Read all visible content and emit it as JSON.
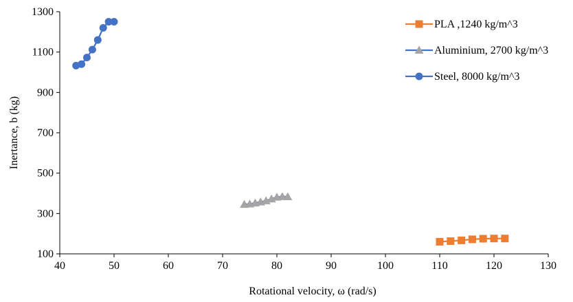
{
  "chart_data": {
    "type": "scatter",
    "title": "",
    "xlabel": "Rotational velocity, ω (rad/s)",
    "ylabel": "Inertance,  b (kg)",
    "xlim": [
      40,
      130
    ],
    "ylim": [
      100,
      1300
    ],
    "xticks": [
      40,
      50,
      60,
      70,
      80,
      90,
      100,
      110,
      120,
      130
    ],
    "yticks": [
      100,
      300,
      500,
      700,
      900,
      1100,
      1300
    ],
    "grid": false,
    "legend_position": "top-right",
    "series": [
      {
        "name": "PLA ,1240 kg/m^3",
        "color": "#ed7d31",
        "marker": "square",
        "x": [
          110,
          112,
          114,
          116,
          118,
          120,
          122
        ],
        "y": [
          160,
          163,
          167,
          172,
          175,
          176,
          176
        ]
      },
      {
        "name": "Aluminium, 2700 kg/m^3",
        "color": "#a5a5a5",
        "line_color": "#4472c4",
        "marker": "triangle",
        "x": [
          74,
          75,
          76,
          77,
          78,
          79,
          80,
          81,
          82
        ],
        "y": [
          345,
          347,
          352,
          357,
          363,
          372,
          381,
          384,
          383
        ]
      },
      {
        "name": "Steel, 8000 kg/m^3",
        "color": "#4472c4",
        "marker": "circle",
        "x": [
          43,
          44,
          45,
          46,
          47,
          48,
          49,
          50
        ],
        "y": [
          1033,
          1040,
          1073,
          1112,
          1160,
          1220,
          1250,
          1250
        ]
      }
    ]
  }
}
